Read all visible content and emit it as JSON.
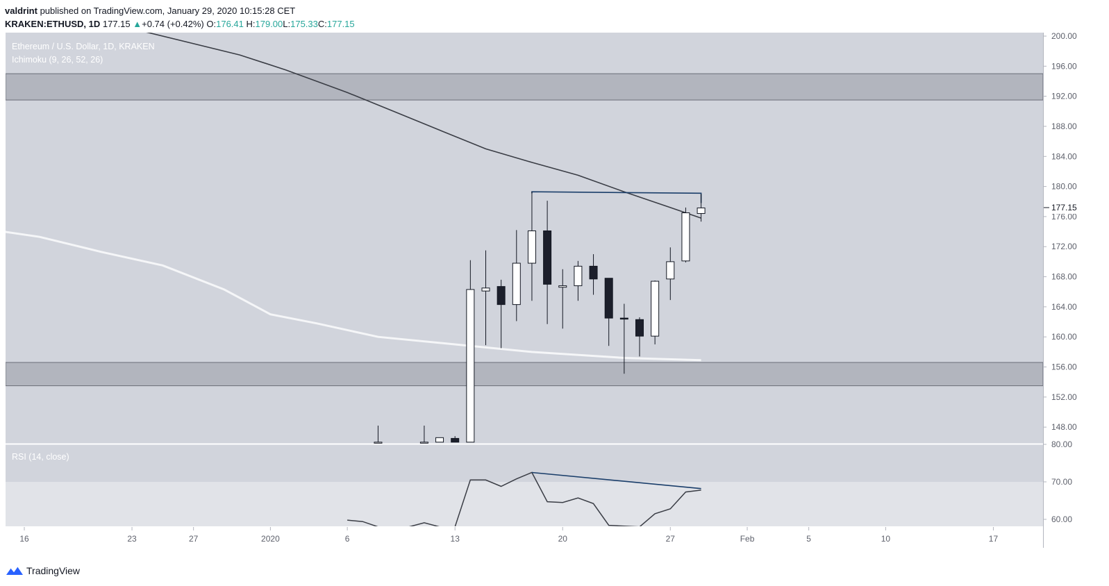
{
  "header": {
    "publisher": "valdrint",
    "published_text": " published on TradingView.com, January 29, 2020 10:15:28 CET",
    "symbol": "KRAKEN:ETHUSD, 1D",
    "last": "177.15",
    "change": "+0.74 (+0.42%)",
    "o_label": "O:",
    "o_value": "176.41",
    "h_label": "H:",
    "h_value": "179.00",
    "l_label": "L:",
    "l_value": "175.33",
    "c_label": "C:",
    "c_value": "177.15"
  },
  "main_pane": {
    "title": "Ethereum / U.S. Dollar, 1D, KRAKEN",
    "indicator": "Ichimoku (9, 26, 52, 26)",
    "price_label": "177.15"
  },
  "rsi_pane": {
    "title": "RSI (14, close)"
  },
  "logo": {
    "text": "TradingView"
  },
  "colors": {
    "pane_bg": "#d1d4dc",
    "zone": "#b2b5be",
    "rsi_band": "#e1e3e8",
    "trendline": "#1a3e6a",
    "up_fill": "#ffffff",
    "down_fill": "#1c1f2b"
  },
  "chart_data": [
    {
      "type": "candlestick",
      "title": "Ethereum / U.S. Dollar, 1D, KRAKEN",
      "y_ticks": [
        "200.00",
        "196.00",
        "192.00",
        "188.00",
        "184.00",
        "180.00",
        "176.00",
        "172.00",
        "168.00",
        "164.00",
        "160.00",
        "156.00",
        "152.00",
        "148.00"
      ],
      "x_ticks": [
        {
          "label": "16",
          "date": "2019-12-16"
        },
        {
          "label": "23",
          "date": "2019-12-23"
        },
        {
          "label": "27",
          "date": "2019-12-27"
        },
        {
          "label": "2020",
          "date": "2020-01-01"
        },
        {
          "label": "6",
          "date": "2020-01-06"
        },
        {
          "label": "13",
          "date": "2020-01-13"
        },
        {
          "label": "20",
          "date": "2020-01-20"
        },
        {
          "label": "27",
          "date": "2020-01-27"
        },
        {
          "label": "Feb",
          "date": "2020-02-01"
        },
        {
          "label": "5",
          "date": "2020-02-05"
        },
        {
          "label": "10",
          "date": "2020-02-10"
        },
        {
          "label": "17",
          "date": "2020-02-17"
        }
      ],
      "ylim": [
        146,
        201
      ],
      "resistance_zone": [
        191.5,
        195
      ],
      "support_zone": [
        153.5,
        156.6
      ],
      "candles": [
        {
          "date": "2020-01-08",
          "open": 146,
          "high": 148.2,
          "low": 146,
          "close": 146
        },
        {
          "date": "2020-01-11",
          "open": 146,
          "high": 148.2,
          "low": 146,
          "close": 146
        },
        {
          "date": "2020-01-12",
          "open": 146,
          "high": 146.5,
          "low": 146,
          "close": 146.6
        },
        {
          "date": "2020-01-13",
          "open": 146.5,
          "high": 146.8,
          "low": 146,
          "close": 146
        },
        {
          "date": "2020-01-14",
          "open": 146,
          "high": 170.2,
          "low": 146,
          "close": 166.3
        },
        {
          "date": "2020-01-15",
          "open": 166.1,
          "high": 171.5,
          "low": 158.9,
          "close": 166.5
        },
        {
          "date": "2020-01-16",
          "open": 166.7,
          "high": 167.6,
          "low": 158.5,
          "close": 164.3
        },
        {
          "date": "2020-01-17",
          "open": 164.3,
          "high": 174.2,
          "low": 162.1,
          "close": 169.8
        },
        {
          "date": "2020-01-18",
          "open": 169.8,
          "high": 179.3,
          "low": 164.8,
          "close": 174.1
        },
        {
          "date": "2020-01-19",
          "open": 174.1,
          "high": 178.1,
          "low": 161.7,
          "close": 167.0
        },
        {
          "date": "2020-01-20",
          "open": 166.6,
          "high": 169.0,
          "low": 161.1,
          "close": 166.8
        },
        {
          "date": "2020-01-21",
          "open": 166.8,
          "high": 170.1,
          "low": 164.8,
          "close": 169.4
        },
        {
          "date": "2020-01-22",
          "open": 169.4,
          "high": 171.0,
          "low": 165.6,
          "close": 167.7
        },
        {
          "date": "2020-01-23",
          "open": 167.8,
          "high": 167.8,
          "low": 158.8,
          "close": 162.5
        },
        {
          "date": "2020-01-24",
          "open": 162.5,
          "high": 164.4,
          "low": 155.1,
          "close": 162.4
        },
        {
          "date": "2020-01-25",
          "open": 162.3,
          "high": 162.6,
          "low": 157.4,
          "close": 160.1
        },
        {
          "date": "2020-01-26",
          "open": 160.1,
          "high": 167.5,
          "low": 159.0,
          "close": 167.4
        },
        {
          "date": "2020-01-27",
          "open": 167.7,
          "high": 171.9,
          "low": 164.9,
          "close": 170.0
        },
        {
          "date": "2020-01-28",
          "open": 170.1,
          "high": 177.2,
          "low": 169.9,
          "close": 176.5
        },
        {
          "date": "2020-01-29",
          "open": 176.41,
          "high": 179.0,
          "low": 175.33,
          "close": 177.15
        }
      ],
      "dark_ma": [
        {
          "date": "2019-12-23",
          "value": 201
        },
        {
          "date": "2019-12-30",
          "value": 197.5
        },
        {
          "date": "2020-01-02",
          "value": 195.5
        },
        {
          "date": "2020-01-06",
          "value": 192.5
        },
        {
          "date": "2020-01-09",
          "value": 190
        },
        {
          "date": "2020-01-12",
          "value": 187.5
        },
        {
          "date": "2020-01-15",
          "value": 185
        },
        {
          "date": "2020-01-18",
          "value": 183.2
        },
        {
          "date": "2020-01-21",
          "value": 181.5
        },
        {
          "date": "2020-01-24",
          "value": 179.3
        },
        {
          "date": "2020-01-27",
          "value": 177.2
        },
        {
          "date": "2020-01-29",
          "value": 175.8
        }
      ],
      "white_ma": [
        {
          "date": "2019-12-13",
          "value": 174.5
        },
        {
          "date": "2019-12-17",
          "value": 173.3
        },
        {
          "date": "2019-12-21",
          "value": 171.3
        },
        {
          "date": "2019-12-25",
          "value": 169.5
        },
        {
          "date": "2019-12-29",
          "value": 166.3
        },
        {
          "date": "2020-01-01",
          "value": 163.0
        },
        {
          "date": "2020-01-04",
          "value": 161.8
        },
        {
          "date": "2020-01-08",
          "value": 160.0
        },
        {
          "date": "2020-01-13",
          "value": 159.0
        },
        {
          "date": "2020-01-18",
          "value": 158.0
        },
        {
          "date": "2020-01-24",
          "value": 157.2
        },
        {
          "date": "2020-01-29",
          "value": 156.9
        }
      ],
      "trendline": [
        {
          "date": "2020-01-18",
          "value": 179.3
        },
        {
          "date": "2020-01-29",
          "value": 179.1
        }
      ]
    },
    {
      "type": "line",
      "title": "RSI (14, close)",
      "y_ticks": [
        "80.00",
        "70.00",
        "60.00"
      ],
      "ylim": [
        58,
        82
      ],
      "overbought_band": [
        58,
        70
      ],
      "series": [
        {
          "values": [
            {
              "date": "2020-01-06",
              "value": 59.8
            },
            {
              "date": "2020-01-07",
              "value": 59.4
            },
            {
              "date": "2020-01-08",
              "value": 58
            },
            {
              "date": "2020-01-10",
              "value": 58
            },
            {
              "date": "2020-01-11",
              "value": 59.1
            },
            {
              "date": "2020-01-12",
              "value": 58
            },
            {
              "date": "2020-01-13",
              "value": 58
            },
            {
              "date": "2020-01-14",
              "value": 70.5
            },
            {
              "date": "2020-01-15",
              "value": 70.5
            },
            {
              "date": "2020-01-16",
              "value": 68.8
            },
            {
              "date": "2020-01-17",
              "value": 70.8
            },
            {
              "date": "2020-01-18",
              "value": 72.5
            },
            {
              "date": "2020-01-19",
              "value": 64.7
            },
            {
              "date": "2020-01-20",
              "value": 64.5
            },
            {
              "date": "2020-01-21",
              "value": 65.7
            },
            {
              "date": "2020-01-22",
              "value": 64.2
            },
            {
              "date": "2020-01-23",
              "value": 58.4
            },
            {
              "date": "2020-01-24",
              "value": 58.2
            },
            {
              "date": "2020-01-25",
              "value": 58
            },
            {
              "date": "2020-01-26",
              "value": 61.5
            },
            {
              "date": "2020-01-27",
              "value": 62.8
            },
            {
              "date": "2020-01-28",
              "value": 67.3
            },
            {
              "date": "2020-01-29",
              "value": 67.8
            }
          ]
        }
      ],
      "trendline": [
        {
          "date": "2020-01-18",
          "value": 72.5
        },
        {
          "date": "2020-01-29",
          "value": 68.2
        }
      ]
    }
  ]
}
